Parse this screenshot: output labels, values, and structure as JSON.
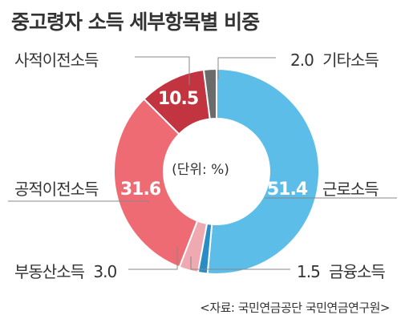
{
  "title": "중고령자 소득 세부항목별 비중",
  "unit_label": "(단위: %)",
  "source": "<자료: 국민연금공단 국민연금연구원>",
  "chart_data": {
    "type": "pie",
    "title": "중고령자 소득 세부항목별 비중",
    "unit": "%",
    "donut": true,
    "slices": [
      {
        "label": "근로소득",
        "value": 51.4,
        "color": "#5bbde8",
        "display": "51.4",
        "inside": true
      },
      {
        "label": "금융소득",
        "value": 1.5,
        "color": "#2a8cc4",
        "display": "1.5",
        "inside": false
      },
      {
        "label": "부동산소득",
        "value": 3.0,
        "color": "#eeaab0",
        "display": "3.0",
        "inside": false
      },
      {
        "label": "공적이전소득",
        "value": 31.6,
        "color": "#ef6b74",
        "display": "31.6",
        "inside": true
      },
      {
        "label": "사적이전소득",
        "value": 10.5,
        "color": "#c2343f",
        "display": "10.5",
        "inside": true
      },
      {
        "label": "기타소득",
        "value": 2.0,
        "color": "#6b6b6b",
        "display": "2.0",
        "inside": false
      }
    ]
  }
}
